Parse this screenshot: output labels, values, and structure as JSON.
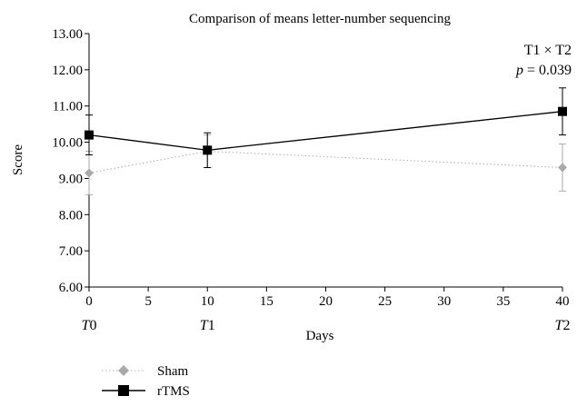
{
  "chart_data": {
    "type": "line",
    "title": "Comparison of means letter-number sequencing",
    "xlabel": "Days",
    "ylabel": "Score",
    "xlim": [
      0,
      40
    ],
    "ylim": [
      6.0,
      13.0
    ],
    "x_ticks": [
      "0",
      "5",
      "10",
      "15",
      "20",
      "25",
      "30",
      "35",
      "40"
    ],
    "y_ticks": [
      "6.00",
      "7.00",
      "8.00",
      "9.00",
      "10.00",
      "11.00",
      "12.00",
      "13.00"
    ],
    "timepoints": [
      {
        "x": 0,
        "italic": "T",
        "sub": "0"
      },
      {
        "x": 10,
        "italic": "T",
        "sub": "1"
      },
      {
        "x": 40,
        "italic": "T",
        "sub": "2"
      }
    ],
    "x": [
      0,
      10,
      40
    ],
    "series": [
      {
        "name": "Sham",
        "values": [
          9.15,
          9.75,
          9.3
        ],
        "errors": [
          0.6,
          0.45,
          0.65
        ],
        "color": "#aaaaaa",
        "marker": "diamond",
        "line": "dotted"
      },
      {
        "name": "rTMS",
        "values": [
          10.2,
          9.78,
          10.85
        ],
        "errors": [
          0.55,
          0.48,
          0.65
        ],
        "color": "#000000",
        "marker": "square",
        "line": "solid"
      }
    ],
    "annotation": {
      "line1": "T1 × T2",
      "line2_italic": "p",
      "line2_rest": " = 0.039"
    },
    "grid": false,
    "legend_position": "bottom-left"
  }
}
